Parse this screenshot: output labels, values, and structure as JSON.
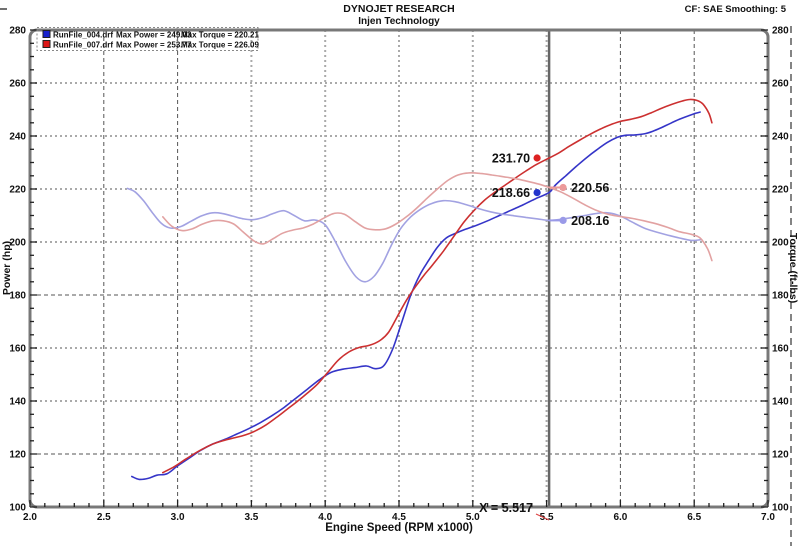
{
  "header": {
    "title": "DYNOJET RESEARCH",
    "subtitle": "Injen Technology",
    "correction": "CF: SAE  Smoothing: 5"
  },
  "legend": {
    "rows": [
      {
        "swatch_color": "#1822cc",
        "file": "RunFile_004.drf",
        "max_power": "Max Power = 249.03",
        "max_torque": "Max Torque = 220.21"
      },
      {
        "swatch_color": "#dd1818",
        "file": "RunFile_007.drf",
        "max_power": "Max Power = 253.77",
        "max_torque": "Max Torque = 226.09"
      }
    ]
  },
  "chart_data": {
    "type": "line",
    "title": "DYNOJET RESEARCH",
    "subtitle": "Injen Technology",
    "xlabel": "Engine Speed (RPM x1000)",
    "ylabel_left": "Power (hp)",
    "ylabel_right": "Torque (ft-lbs)",
    "xlim": [
      2.0,
      7.0
    ],
    "ylim": [
      100,
      280
    ],
    "x_major_step": 0.5,
    "x_minor_step": 0.1,
    "y_major_step": 20,
    "y_minor_step": 5,
    "grid": "dashed-majors",
    "legend_position": "top-left",
    "cursor": {
      "x": 5.517,
      "label": "X = 5.517"
    },
    "series": [
      {
        "id": "power-004",
        "name": "RunFile_004.drf Power",
        "axis": "left",
        "color": "#3535c8",
        "max": 249.03,
        "points": [
          [
            2.69,
            111.5
          ],
          [
            2.74,
            110.4
          ],
          [
            2.8,
            110.8
          ],
          [
            2.86,
            112.0
          ],
          [
            2.93,
            112.6
          ],
          [
            3.0,
            115.5
          ],
          [
            3.08,
            118.5
          ],
          [
            3.16,
            121.5
          ],
          [
            3.24,
            123.8
          ],
          [
            3.32,
            125.5
          ],
          [
            3.4,
            127.5
          ],
          [
            3.48,
            129.5
          ],
          [
            3.56,
            131.8
          ],
          [
            3.64,
            134.5
          ],
          [
            3.72,
            137.5
          ],
          [
            3.8,
            141.0
          ],
          [
            3.88,
            144.5
          ],
          [
            3.96,
            148.0
          ],
          [
            4.04,
            150.8
          ],
          [
            4.12,
            152.0
          ],
          [
            4.2,
            152.6
          ],
          [
            4.28,
            153.2
          ],
          [
            4.34,
            152.2
          ],
          [
            4.4,
            153.5
          ],
          [
            4.46,
            160.0
          ],
          [
            4.52,
            170.0
          ],
          [
            4.58,
            180.0
          ],
          [
            4.64,
            187.5
          ],
          [
            4.7,
            193.0
          ],
          [
            4.76,
            198.0
          ],
          [
            4.82,
            201.5
          ],
          [
            4.88,
            203.2
          ],
          [
            4.95,
            204.8
          ],
          [
            5.02,
            206.2
          ],
          [
            5.1,
            208.0
          ],
          [
            5.18,
            210.0
          ],
          [
            5.26,
            212.0
          ],
          [
            5.34,
            214.0
          ],
          [
            5.42,
            216.2
          ],
          [
            5.517,
            218.66
          ],
          [
            5.56,
            221.5
          ],
          [
            5.63,
            225.0
          ],
          [
            5.7,
            228.5
          ],
          [
            5.77,
            231.8
          ],
          [
            5.84,
            234.8
          ],
          [
            5.91,
            237.5
          ],
          [
            5.98,
            239.5
          ],
          [
            6.04,
            240.3
          ],
          [
            6.1,
            240.4
          ],
          [
            6.16,
            240.8
          ],
          [
            6.22,
            241.8
          ],
          [
            6.28,
            243.2
          ],
          [
            6.34,
            244.8
          ],
          [
            6.4,
            246.3
          ],
          [
            6.46,
            247.6
          ],
          [
            6.5,
            248.4
          ],
          [
            6.54,
            249.03
          ]
        ]
      },
      {
        "id": "power-007",
        "name": "RunFile_007.drf Power",
        "axis": "left",
        "color": "#cc3030",
        "max": 253.77,
        "points": [
          [
            2.9,
            113.0
          ],
          [
            2.97,
            115.0
          ],
          [
            3.04,
            117.5
          ],
          [
            3.11,
            120.0
          ],
          [
            3.18,
            122.2
          ],
          [
            3.25,
            124.0
          ],
          [
            3.32,
            125.2
          ],
          [
            3.39,
            126.2
          ],
          [
            3.46,
            127.2
          ],
          [
            3.53,
            128.8
          ],
          [
            3.6,
            131.0
          ],
          [
            3.67,
            133.8
          ],
          [
            3.74,
            136.8
          ],
          [
            3.81,
            139.8
          ],
          [
            3.88,
            143.0
          ],
          [
            3.95,
            146.5
          ],
          [
            4.02,
            151.0
          ],
          [
            4.09,
            155.5
          ],
          [
            4.16,
            158.5
          ],
          [
            4.23,
            160.2
          ],
          [
            4.3,
            161.0
          ],
          [
            4.37,
            162.8
          ],
          [
            4.43,
            166.0
          ],
          [
            4.49,
            172.0
          ],
          [
            4.55,
            178.0
          ],
          [
            4.61,
            183.0
          ],
          [
            4.67,
            187.5
          ],
          [
            4.73,
            191.5
          ],
          [
            4.8,
            196.5
          ],
          [
            4.87,
            202.0
          ],
          [
            4.94,
            207.5
          ],
          [
            5.01,
            212.0
          ],
          [
            5.08,
            215.8
          ],
          [
            5.15,
            218.8
          ],
          [
            5.22,
            221.5
          ],
          [
            5.29,
            224.2
          ],
          [
            5.36,
            226.8
          ],
          [
            5.43,
            229.2
          ],
          [
            5.517,
            231.7
          ],
          [
            5.58,
            233.5
          ],
          [
            5.65,
            236.0
          ],
          [
            5.72,
            238.3
          ],
          [
            5.79,
            240.5
          ],
          [
            5.86,
            242.5
          ],
          [
            5.93,
            244.2
          ],
          [
            6.0,
            245.5
          ],
          [
            6.07,
            246.3
          ],
          [
            6.14,
            247.3
          ],
          [
            6.21,
            248.8
          ],
          [
            6.28,
            250.5
          ],
          [
            6.35,
            252.0
          ],
          [
            6.42,
            253.2
          ],
          [
            6.47,
            253.77
          ],
          [
            6.52,
            253.4
          ],
          [
            6.56,
            252.0
          ],
          [
            6.6,
            248.5
          ],
          [
            6.62,
            245.0
          ]
        ]
      },
      {
        "id": "torque-004",
        "name": "RunFile_004.drf Torque",
        "axis": "right",
        "color": "#a2a2e2",
        "max": 220.21,
        "points": [
          [
            2.66,
            220.21
          ],
          [
            2.71,
            219.0
          ],
          [
            2.77,
            215.5
          ],
          [
            2.83,
            211.0
          ],
          [
            2.89,
            207.0
          ],
          [
            2.95,
            205.3
          ],
          [
            3.02,
            205.8
          ],
          [
            3.09,
            207.8
          ],
          [
            3.16,
            209.8
          ],
          [
            3.23,
            211.0
          ],
          [
            3.3,
            210.8
          ],
          [
            3.37,
            209.8
          ],
          [
            3.44,
            208.8
          ],
          [
            3.51,
            208.4
          ],
          [
            3.58,
            209.3
          ],
          [
            3.65,
            210.8
          ],
          [
            3.72,
            211.8
          ],
          [
            3.79,
            210.0
          ],
          [
            3.86,
            208.0
          ],
          [
            3.93,
            208.3
          ],
          [
            4.0,
            206.5
          ],
          [
            4.07,
            200.0
          ],
          [
            4.14,
            192.5
          ],
          [
            4.21,
            186.8
          ],
          [
            4.27,
            185.0
          ],
          [
            4.33,
            187.0
          ],
          [
            4.39,
            192.0
          ],
          [
            4.45,
            199.0
          ],
          [
            4.51,
            205.0
          ],
          [
            4.58,
            209.5
          ],
          [
            4.65,
            212.5
          ],
          [
            4.72,
            214.5
          ],
          [
            4.8,
            215.6
          ],
          [
            4.88,
            215.2
          ],
          [
            4.96,
            214.0
          ],
          [
            5.04,
            212.6
          ],
          [
            5.12,
            211.4
          ],
          [
            5.2,
            210.5
          ],
          [
            5.28,
            209.9
          ],
          [
            5.36,
            209.3
          ],
          [
            5.44,
            208.7
          ],
          [
            5.517,
            208.16
          ],
          [
            5.6,
            208.6
          ],
          [
            5.68,
            209.3
          ],
          [
            5.76,
            210.0
          ],
          [
            5.84,
            210.8
          ],
          [
            5.92,
            211.0
          ],
          [
            6.0,
            209.8
          ],
          [
            6.08,
            207.5
          ],
          [
            6.16,
            205.3
          ],
          [
            6.24,
            203.8
          ],
          [
            6.32,
            202.6
          ],
          [
            6.4,
            201.5
          ],
          [
            6.48,
            200.6
          ],
          [
            6.55,
            200.9
          ]
        ]
      },
      {
        "id": "torque-007",
        "name": "RunFile_007.drf Torque",
        "axis": "right",
        "color": "#e2a2a2",
        "max": 226.09,
        "points": [
          [
            2.9,
            209.5
          ],
          [
            2.96,
            206.0
          ],
          [
            3.03,
            204.3
          ],
          [
            3.1,
            205.0
          ],
          [
            3.17,
            206.8
          ],
          [
            3.24,
            208.0
          ],
          [
            3.31,
            208.0
          ],
          [
            3.38,
            206.8
          ],
          [
            3.45,
            203.5
          ],
          [
            3.52,
            200.3
          ],
          [
            3.58,
            199.3
          ],
          [
            3.64,
            201.0
          ],
          [
            3.71,
            203.3
          ],
          [
            3.78,
            204.5
          ],
          [
            3.85,
            205.3
          ],
          [
            3.92,
            206.8
          ],
          [
            3.99,
            209.0
          ],
          [
            4.06,
            210.8
          ],
          [
            4.13,
            210.5
          ],
          [
            4.2,
            207.8
          ],
          [
            4.27,
            205.3
          ],
          [
            4.34,
            204.6
          ],
          [
            4.41,
            205.0
          ],
          [
            4.48,
            206.8
          ],
          [
            4.55,
            209.5
          ],
          [
            4.62,
            212.8
          ],
          [
            4.69,
            216.5
          ],
          [
            4.76,
            220.0
          ],
          [
            4.83,
            223.2
          ],
          [
            4.9,
            225.3
          ],
          [
            4.97,
            226.09
          ],
          [
            5.05,
            225.9
          ],
          [
            5.13,
            225.3
          ],
          [
            5.21,
            224.6
          ],
          [
            5.29,
            223.9
          ],
          [
            5.37,
            222.9
          ],
          [
            5.45,
            221.8
          ],
          [
            5.517,
            220.56
          ],
          [
            5.6,
            218.8
          ],
          [
            5.68,
            216.5
          ],
          [
            5.76,
            214.0
          ],
          [
            5.84,
            211.9
          ],
          [
            5.92,
            210.4
          ],
          [
            6.0,
            209.6
          ],
          [
            6.08,
            208.9
          ],
          [
            6.16,
            208.0
          ],
          [
            6.24,
            206.9
          ],
          [
            6.32,
            205.5
          ],
          [
            6.4,
            203.9
          ],
          [
            6.48,
            202.9
          ],
          [
            6.54,
            201.5
          ],
          [
            6.59,
            197.5
          ],
          [
            6.62,
            193.0
          ]
        ]
      }
    ],
    "markers": [
      {
        "label": "231.70",
        "value": 231.7,
        "series": "power-007",
        "color": "#dd2222",
        "side": "left"
      },
      {
        "label": "218.66",
        "value": 218.66,
        "series": "power-004",
        "color": "#2233cc",
        "side": "left"
      },
      {
        "label": "220.56",
        "value": 220.56,
        "series": "torque-007",
        "color": "#ec9a9a",
        "side": "right"
      },
      {
        "label": "208.16",
        "value": 208.16,
        "series": "torque-004",
        "color": "#9a9ae8",
        "side": "right"
      }
    ]
  },
  "colors": {
    "grid_light": "#aaaaaa",
    "grid_dark": "#555555",
    "border": "#787878",
    "cursor": "#666666",
    "text": "#111111",
    "callout_line": "#dd4444"
  }
}
